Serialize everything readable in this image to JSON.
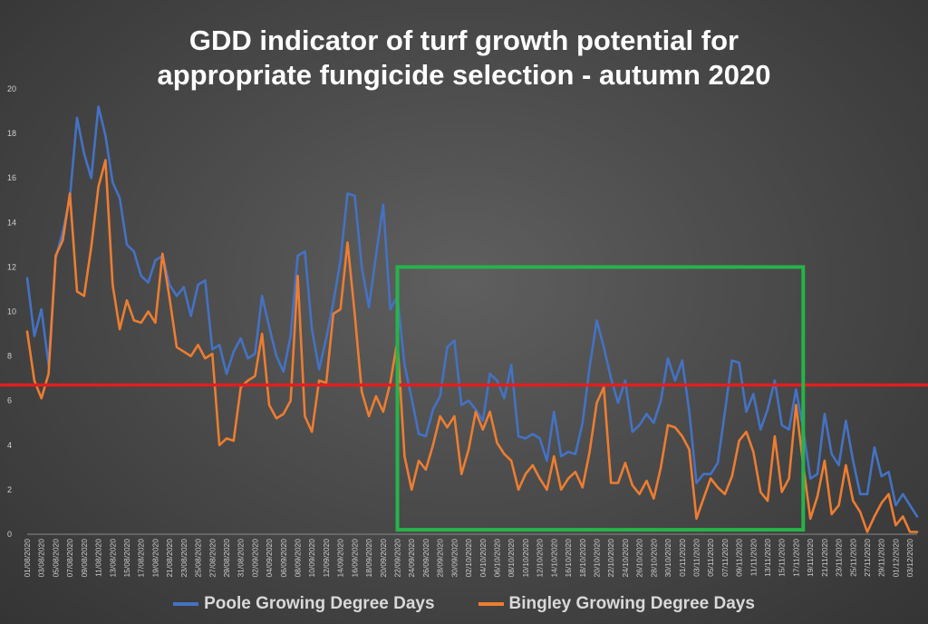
{
  "chart_data": {
    "type": "line",
    "title_lines": [
      "GDD indicator of turf growth potential for",
      "appropriate fungicide selection - autumn 2020"
    ],
    "xlabel": "",
    "ylabel": "",
    "ylim": [
      0,
      20
    ],
    "yticks": [
      0,
      2,
      4,
      6,
      8,
      10,
      12,
      14,
      16,
      18,
      20
    ],
    "x_start": "01/08/2020",
    "x_end": "04/12/2020",
    "x_tick_labels": [
      "01/08/2020",
      "03/08/2020",
      "05/08/2020",
      "07/08/2020",
      "09/08/2020",
      "11/08/2020",
      "13/08/2020",
      "15/08/2020",
      "17/08/2020",
      "19/08/2020",
      "21/08/2020",
      "23/08/2020",
      "25/08/2020",
      "27/08/2020",
      "29/08/2020",
      "31/08/2020",
      "02/09/2020",
      "04/09/2020",
      "06/09/2020",
      "08/09/2020",
      "10/09/2020",
      "12/09/2020",
      "14/09/2020",
      "16/09/2020",
      "18/09/2020",
      "20/09/2020",
      "22/09/2020",
      "24/09/2020",
      "26/09/2020",
      "28/09/2020",
      "30/09/2020",
      "02/10/2020",
      "04/10/2020",
      "06/10/2020",
      "08/10/2020",
      "10/10/2020",
      "12/10/2020",
      "14/10/2020",
      "16/10/2020",
      "18/10/2020",
      "20/10/2020",
      "22/10/2020",
      "24/10/2020",
      "26/10/2020",
      "28/10/2020",
      "30/10/2020",
      "01/11/2020",
      "03/11/2020",
      "05/11/2020",
      "07/11/2020",
      "09/11/2020",
      "11/11/2020",
      "13/11/2020",
      "15/11/2020",
      "17/11/2020",
      "19/11/2020",
      "21/11/2020",
      "23/11/2020",
      "25/11/2020",
      "27/11/2020",
      "29/11/2020",
      "01/12/2020",
      "03/12/2020"
    ],
    "grid": false,
    "legend_position": "bottom",
    "series": [
      {
        "name": "Poole Growing Degree Days",
        "color": "#4472c4",
        "values": [
          11.5,
          8.9,
          10.1,
          7.6,
          12.4,
          13.6,
          15.1,
          18.7,
          17.1,
          16.0,
          19.2,
          17.9,
          15.8,
          15.1,
          13.0,
          12.7,
          11.6,
          11.3,
          12.3,
          12.5,
          11.2,
          10.7,
          11.1,
          9.8,
          11.2,
          11.4,
          8.3,
          8.5,
          7.2,
          8.2,
          8.8,
          7.9,
          8.1,
          10.7,
          9.3,
          8.0,
          7.3,
          8.9,
          12.5,
          12.7,
          9.2,
          7.4,
          8.8,
          10.4,
          12.3,
          15.3,
          15.2,
          12.0,
          10.2,
          12.5,
          14.8,
          10.1,
          10.7,
          7.6,
          6.1,
          4.5,
          4.4,
          5.6,
          6.2,
          8.4,
          8.7,
          5.8,
          6.0,
          5.6,
          5.1,
          7.2,
          6.9,
          6.1,
          7.6,
          4.4,
          4.3,
          4.5,
          4.3,
          3.3,
          5.5,
          3.5,
          3.7,
          3.6,
          5.0,
          7.5,
          9.6,
          8.4,
          7.0,
          5.9,
          6.9,
          4.6,
          4.9,
          5.4,
          5.0,
          6.0,
          7.9,
          6.9,
          7.8,
          5.5,
          2.3,
          2.7,
          2.7,
          3.2,
          5.5,
          7.8,
          7.7,
          5.5,
          6.3,
          4.7,
          5.6,
          6.9,
          4.9,
          4.7,
          6.5,
          4.7,
          2.5,
          2.7,
          5.4,
          3.6,
          3.1,
          5.1,
          3.3,
          1.8,
          1.8,
          3.9,
          2.6,
          2.8,
          1.3,
          1.8,
          1.3,
          0.8
        ]
      },
      {
        "name": "Bingley Growing Degree Days",
        "color": "#ed7d31",
        "values": [
          9.1,
          6.9,
          6.1,
          7.2,
          12.5,
          13.2,
          15.3,
          10.9,
          10.7,
          12.9,
          15.6,
          16.8,
          11.2,
          9.2,
          10.5,
          9.6,
          9.5,
          10.0,
          9.5,
          12.6,
          10.6,
          8.4,
          8.2,
          8.0,
          8.5,
          7.9,
          8.1,
          4.0,
          4.3,
          4.2,
          6.6,
          6.9,
          7.1,
          9.0,
          5.8,
          5.2,
          5.4,
          6.0,
          11.6,
          5.3,
          4.6,
          6.9,
          6.8,
          9.9,
          10.1,
          13.1,
          9.9,
          6.4,
          5.3,
          6.2,
          5.5,
          6.8,
          8.7,
          3.5,
          2.0,
          3.3,
          2.9,
          4.0,
          5.3,
          4.8,
          5.3,
          2.7,
          3.8,
          5.5,
          4.7,
          5.5,
          4.1,
          3.6,
          3.3,
          2.0,
          2.7,
          3.1,
          2.5,
          2.0,
          3.5,
          2.0,
          2.5,
          2.8,
          2.1,
          3.7,
          5.9,
          6.6,
          2.3,
          2.3,
          3.2,
          2.2,
          1.8,
          2.4,
          1.6,
          3.0,
          4.9,
          4.8,
          4.4,
          3.8,
          0.7,
          1.6,
          2.5,
          2.1,
          1.8,
          2.6,
          4.2,
          4.6,
          3.7,
          1.9,
          1.5,
          4.4,
          1.9,
          2.5,
          5.8,
          3.1,
          0.7,
          1.7,
          3.3,
          0.9,
          1.3,
          3.1,
          1.5,
          1.0,
          0.1,
          0.8,
          1.4,
          1.8,
          0.4,
          0.8,
          0.1,
          0.1
        ]
      }
    ],
    "annotations": [
      {
        "kind": "threshold-line",
        "value": 6.7,
        "color": "#e02020"
      },
      {
        "kind": "highlight-box",
        "x_from": "22/09/2020",
        "x_to": "18/11/2020",
        "y_from": 0.2,
        "y_to": 12.0,
        "color": "#27b34a"
      }
    ]
  }
}
